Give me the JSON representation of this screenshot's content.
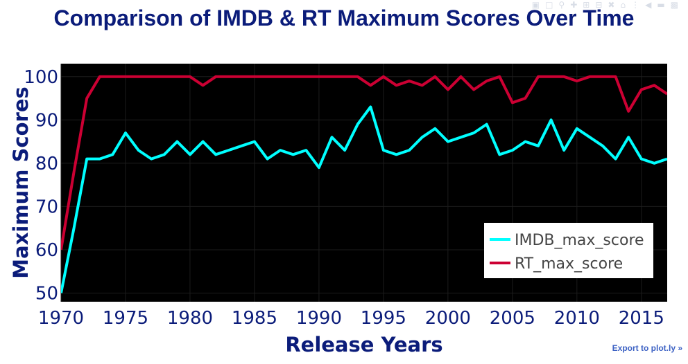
{
  "chart_data": {
    "type": "line",
    "title": "Comparison of IMDB & RT Maximum Scores Over Time",
    "xlabel": "Release Years",
    "ylabel": "Maximum Scores",
    "xlim": [
      1970,
      2017
    ],
    "ylim": [
      48,
      103
    ],
    "xticks": [
      1970,
      1975,
      1980,
      1985,
      1990,
      1995,
      2000,
      2005,
      2010,
      2015
    ],
    "yticks": [
      50,
      60,
      70,
      80,
      90,
      100
    ],
    "legend_position": "bottom-right",
    "grid": true,
    "background": "#000000",
    "x": [
      1970,
      1971,
      1972,
      1973,
      1974,
      1975,
      1976,
      1977,
      1978,
      1979,
      1980,
      1981,
      1982,
      1983,
      1984,
      1985,
      1986,
      1987,
      1988,
      1989,
      1990,
      1991,
      1992,
      1993,
      1994,
      1995,
      1996,
      1997,
      1998,
      1999,
      2000,
      2001,
      2002,
      2003,
      2004,
      2005,
      2006,
      2007,
      2008,
      2009,
      2010,
      2011,
      2012,
      2013,
      2014,
      2015,
      2016,
      2017
    ],
    "series": [
      {
        "name": "IMDB_max_score",
        "color": "#00ffff",
        "values": [
          50,
          65,
          81,
          81,
          82,
          87,
          83,
          81,
          82,
          85,
          82,
          85,
          82,
          83,
          84,
          85,
          81,
          83,
          82,
          83,
          79,
          86,
          83,
          89,
          93,
          83,
          82,
          83,
          86,
          88,
          85,
          86,
          87,
          89,
          82,
          83,
          85,
          84,
          90,
          83,
          88,
          86,
          84,
          81,
          86,
          81,
          80,
          81
        ]
      },
      {
        "name": "RT_max_score",
        "color": "#cc0033",
        "values": [
          60,
          78,
          95,
          100,
          100,
          100,
          100,
          100,
          100,
          100,
          100,
          98,
          100,
          100,
          100,
          100,
          100,
          100,
          100,
          100,
          100,
          100,
          100,
          100,
          98,
          100,
          98,
          99,
          98,
          100,
          97,
          100,
          97,
          99,
          100,
          94,
          95,
          100,
          100,
          100,
          99,
          100,
          100,
          100,
          92,
          97,
          98,
          96
        ]
      }
    ]
  },
  "ui": {
    "export_label": "Export to plot.ly »",
    "modebar_icons": [
      "camera-icon",
      "save-icon",
      "zoom-icon",
      "pan-icon",
      "zoom-in-icon",
      "zoom-out-icon",
      "autoscale-icon",
      "reset-axes-icon",
      "spike-icon",
      "hover-closest-icon",
      "hover-compare-icon",
      "plotly-logo-icon"
    ]
  }
}
